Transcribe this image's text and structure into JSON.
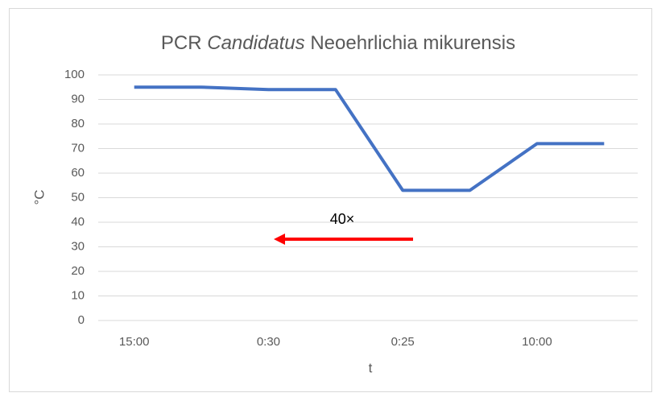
{
  "chart_data": {
    "type": "line",
    "title": [
      "PCR",
      "Candidatus",
      "Neoehrlichia mikurensis"
    ],
    "x_label": "t",
    "y_label": "°C",
    "annotation": "40×",
    "categories": [
      "15:00",
      null,
      "0:30",
      null,
      "0:25",
      null,
      "10:00",
      null
    ],
    "series": [
      {
        "name": "PCR",
        "color": "#4472c4",
        "values": [
          95,
          95,
          94,
          94,
          53,
          53,
          72,
          72
        ]
      }
    ],
    "ylim": [
      0,
      100
    ],
    "yticks": [
      0,
      10,
      20,
      30,
      40,
      50,
      60,
      70,
      80,
      90,
      100
    ],
    "grid": true,
    "legend": false
  }
}
